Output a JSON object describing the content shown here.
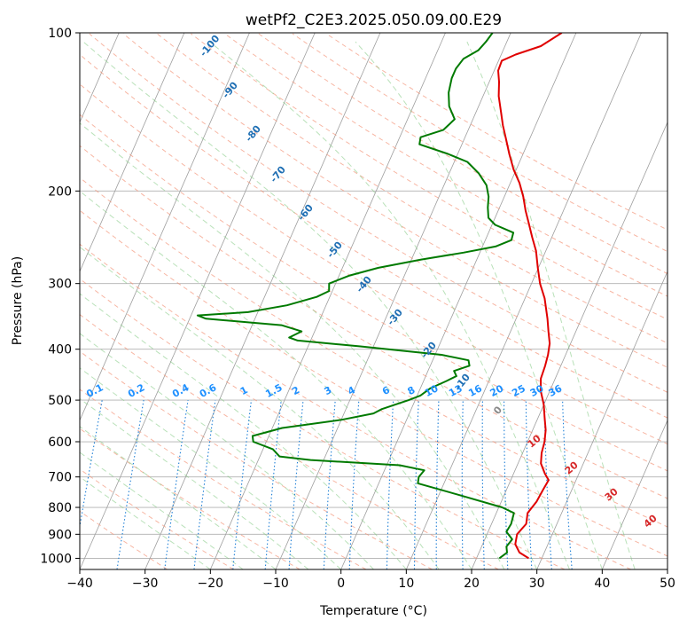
{
  "chart_data": {
    "type": "line",
    "title": "wetPf2_C2E3.2025.050.09.00.E29",
    "xlabel": "Temperature (°C)",
    "ylabel": "Pressure (hPa)",
    "xlim": [
      -40,
      50
    ],
    "ylim": [
      1050,
      100
    ],
    "y_scale": "log",
    "grid": true,
    "x_ticks": [
      -40,
      -30,
      -20,
      -10,
      0,
      10,
      20,
      30,
      40,
      50
    ],
    "x_tick_labels": [
      "−40",
      "−30",
      "−20",
      "−10",
      "0",
      "10",
      "20",
      "30",
      "40",
      "50"
    ],
    "y_ticks": [
      100,
      200,
      300,
      400,
      500,
      600,
      700,
      800,
      900,
      1000
    ],
    "y_tick_labels": [
      "100",
      "200",
      "300",
      "400",
      "500",
      "600",
      "700",
      "800",
      "900",
      "1000"
    ],
    "colors": {
      "temperature": "#e00000",
      "dewpoint": "#007a00",
      "dry_adiabat": "#f4967a",
      "moist_adiabat": "#7fc97f",
      "mixing_ratio": "#1e7fd6",
      "isotherm": "#9e9e9e",
      "grid": "#b0b0b0",
      "dry_label": "#d62728",
      "moist_label": "#1f6fb4",
      "mixing_label": "#1e90ff",
      "zero_label": "#888888"
    },
    "series": [
      {
        "key": "temperature",
        "points": [
          [
            28.0,
            1000
          ],
          [
            26.2,
            975
          ],
          [
            25.0,
            940
          ],
          [
            24.6,
            900
          ],
          [
            25.3,
            860
          ],
          [
            24.8,
            820
          ],
          [
            25.4,
            780
          ],
          [
            25.6,
            740
          ],
          [
            25.8,
            710
          ],
          [
            24.8,
            690
          ],
          [
            23.5,
            660
          ],
          [
            22.9,
            630
          ],
          [
            22.6,
            600
          ],
          [
            22.0,
            570
          ],
          [
            21.0,
            540
          ],
          [
            20.0,
            510
          ],
          [
            18.6,
            480
          ],
          [
            17.8,
            455
          ],
          [
            17.6,
            430
          ],
          [
            17.3,
            410
          ],
          [
            16.8,
            390
          ],
          [
            15.8,
            370
          ],
          [
            14.8,
            350
          ],
          [
            13.0,
            320
          ],
          [
            11.3,
            300
          ],
          [
            9.9,
            280
          ],
          [
            8.5,
            260
          ],
          [
            7.0,
            245
          ],
          [
            5.5,
            230
          ],
          [
            4.2,
            218
          ],
          [
            2.9,
            205
          ],
          [
            1.4,
            193
          ],
          [
            -0.4,
            182
          ],
          [
            -2.1,
            170
          ],
          [
            -3.5,
            160
          ],
          [
            -5.0,
            150
          ],
          [
            -6.4,
            140
          ],
          [
            -7.6,
            132
          ],
          [
            -8.5,
            124
          ],
          [
            -9.4,
            118
          ],
          [
            -9.5,
            113
          ],
          [
            -7.8,
            110
          ],
          [
            -4.5,
            106
          ],
          [
            -2.2,
            100
          ]
        ]
      },
      {
        "key": "dewpoint",
        "points": [
          [
            23.5,
            1000
          ],
          [
            24.3,
            975
          ],
          [
            23.8,
            950
          ],
          [
            24.2,
            920
          ],
          [
            22.8,
            890
          ],
          [
            23.0,
            860
          ],
          [
            22.7,
            820
          ],
          [
            20.5,
            800
          ],
          [
            13.5,
            760
          ],
          [
            6.0,
            720
          ],
          [
            5.7,
            700
          ],
          [
            6.1,
            680
          ],
          [
            2.0,
            665
          ],
          [
            -12.0,
            650
          ],
          [
            -17.0,
            640
          ],
          [
            -18.5,
            620
          ],
          [
            -22.0,
            600
          ],
          [
            -22.5,
            585
          ],
          [
            -18.5,
            565
          ],
          [
            -10.0,
            545
          ],
          [
            -5.5,
            530
          ],
          [
            -4.5,
            520
          ],
          [
            -1.0,
            500
          ],
          [
            0.5,
            490
          ],
          [
            1.5,
            475
          ],
          [
            3.5,
            460
          ],
          [
            4.7,
            450
          ],
          [
            4.0,
            440
          ],
          [
            6.0,
            430
          ],
          [
            5.5,
            420
          ],
          [
            1.0,
            410
          ],
          [
            -12.0,
            395
          ],
          [
            -22.0,
            385
          ],
          [
            -23.5,
            380
          ],
          [
            -22.0,
            370
          ],
          [
            -25.5,
            360
          ],
          [
            -37.5,
            350
          ],
          [
            -39.0,
            345
          ],
          [
            -31.5,
            340
          ],
          [
            -26.0,
            330
          ],
          [
            -22.0,
            318
          ],
          [
            -20.5,
            310
          ],
          [
            -21.0,
            300
          ],
          [
            -18.5,
            290
          ],
          [
            -14.5,
            280
          ],
          [
            -8.5,
            270
          ],
          [
            -2.5,
            262
          ],
          [
            2.0,
            255
          ],
          [
            4.0,
            248
          ],
          [
            3.8,
            240
          ],
          [
            0.5,
            232
          ],
          [
            -1.0,
            225
          ],
          [
            -1.8,
            215
          ],
          [
            -2.4,
            205
          ],
          [
            -3.5,
            195
          ],
          [
            -5.5,
            185
          ],
          [
            -8.0,
            176
          ],
          [
            -11.5,
            170
          ],
          [
            -16.5,
            163
          ],
          [
            -16.8,
            158
          ],
          [
            -13.8,
            153
          ],
          [
            -12.8,
            146
          ],
          [
            -14.5,
            138
          ],
          [
            -15.5,
            130
          ],
          [
            -16.0,
            122
          ],
          [
            -16.0,
            117
          ],
          [
            -15.5,
            112
          ],
          [
            -13.8,
            108
          ],
          [
            -13.2,
            104
          ],
          [
            -12.8,
            100
          ]
        ]
      }
    ],
    "dry_adiabat_labels": [
      "10",
      "20",
      "30",
      "40"
    ],
    "moist_adiabat_labels": [
      "-100",
      "-90",
      "-80",
      "-70",
      "-60",
      "-50",
      "-40",
      "-30",
      "-20",
      "-10",
      "0"
    ],
    "mixing_ratio_labels": [
      "0.1",
      "0.2",
      "0.4",
      "0.6",
      "1",
      "1.5",
      "2",
      "3",
      "4",
      "6",
      "8",
      "10",
      "13",
      "16",
      "20",
      "25",
      "30",
      "36"
    ]
  }
}
